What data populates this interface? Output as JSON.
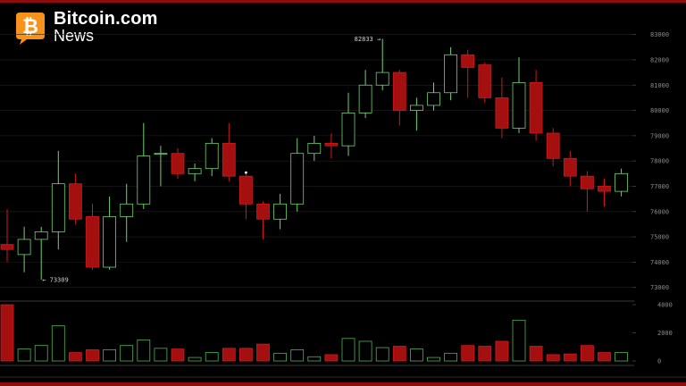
{
  "brand": {
    "name": "Bitcoin.com",
    "sub": "News",
    "icon": "bitcoin-logo-icon",
    "color": "#f7931a"
  },
  "colors": {
    "up": "#6fd36f",
    "down_fill": "#a40f0f",
    "down_stroke": "#d01a1a",
    "vol_up_stroke": "#4fb24f",
    "grid": "#202020",
    "axis_text": "#8a8a8a",
    "background": "#000000"
  },
  "chart_data": {
    "type": "candlestick",
    "title": "",
    "price_axis": {
      "min": 72600,
      "max": 83200,
      "ticks": [
        "73000",
        "74000",
        "75000",
        "76000",
        "77000",
        "78000",
        "79000",
        "80000",
        "81000",
        "82000",
        "83000"
      ]
    },
    "volume_axis": {
      "min": 0,
      "max": 4000,
      "ticks": [
        "0",
        "2000",
        "4000"
      ]
    },
    "annotations": {
      "high_label": "82833 →",
      "high_value": 82833,
      "low_label": "← 73309",
      "low_value": 73309
    },
    "candles": [
      {
        "o": 74700,
        "h": 76100,
        "l": 74000,
        "c": 74500,
        "v": 4000
      },
      {
        "o": 74300,
        "h": 75400,
        "l": 73600,
        "c": 74900,
        "v": 850
      },
      {
        "o": 74900,
        "h": 75400,
        "l": 73309,
        "c": 75200,
        "v": 1100
      },
      {
        "o": 75200,
        "h": 78400,
        "l": 74500,
        "c": 77100,
        "v": 2500
      },
      {
        "o": 77100,
        "h": 77500,
        "l": 75500,
        "c": 75700,
        "v": 600
      },
      {
        "o": 75800,
        "h": 76300,
        "l": 73700,
        "c": 73800,
        "v": 800
      },
      {
        "o": 73800,
        "h": 76600,
        "l": 73700,
        "c": 75800,
        "v": 800
      },
      {
        "o": 75800,
        "h": 77100,
        "l": 74800,
        "c": 76300,
        "v": 1100
      },
      {
        "o": 76300,
        "h": 79500,
        "l": 76100,
        "c": 78200,
        "v": 1500
      },
      {
        "o": 78300,
        "h": 78600,
        "l": 77000,
        "c": 78300,
        "v": 900
      },
      {
        "o": 78300,
        "h": 78500,
        "l": 77300,
        "c": 77500,
        "v": 850
      },
      {
        "o": 77500,
        "h": 77900,
        "l": 77200,
        "c": 77700,
        "v": 250
      },
      {
        "o": 77700,
        "h": 78900,
        "l": 77400,
        "c": 78700,
        "v": 600
      },
      {
        "o": 78700,
        "h": 79500,
        "l": 77200,
        "c": 77400,
        "v": 900
      },
      {
        "o": 77400,
        "h": 77500,
        "l": 75700,
        "c": 76300,
        "v": 900
      },
      {
        "o": 76300,
        "h": 76400,
        "l": 74900,
        "c": 75700,
        "v": 1200
      },
      {
        "o": 75700,
        "h": 76700,
        "l": 75300,
        "c": 76300,
        "v": 550
      },
      {
        "o": 76300,
        "h": 78900,
        "l": 76000,
        "c": 78300,
        "v": 800
      },
      {
        "o": 78300,
        "h": 79000,
        "l": 78000,
        "c": 78700,
        "v": 300
      },
      {
        "o": 78700,
        "h": 79100,
        "l": 78100,
        "c": 78600,
        "v": 450
      },
      {
        "o": 78600,
        "h": 80700,
        "l": 78200,
        "c": 79900,
        "v": 1600
      },
      {
        "o": 79900,
        "h": 81600,
        "l": 79700,
        "c": 81000,
        "v": 1400
      },
      {
        "o": 81000,
        "h": 82833,
        "l": 80800,
        "c": 81500,
        "v": 950
      },
      {
        "o": 81500,
        "h": 81600,
        "l": 79400,
        "c": 80000,
        "v": 1050
      },
      {
        "o": 80000,
        "h": 80500,
        "l": 79200,
        "c": 80200,
        "v": 850
      },
      {
        "o": 80200,
        "h": 81100,
        "l": 80000,
        "c": 80700,
        "v": 250
      },
      {
        "o": 80700,
        "h": 82500,
        "l": 80400,
        "c": 82200,
        "v": 550
      },
      {
        "o": 82200,
        "h": 82400,
        "l": 80500,
        "c": 81700,
        "v": 1100
      },
      {
        "o": 81800,
        "h": 81900,
        "l": 80300,
        "c": 80500,
        "v": 1050
      },
      {
        "o": 80500,
        "h": 81300,
        "l": 78900,
        "c": 79300,
        "v": 1400
      },
      {
        "o": 79300,
        "h": 82100,
        "l": 79100,
        "c": 81100,
        "v": 2900
      },
      {
        "o": 81100,
        "h": 81600,
        "l": 78800,
        "c": 79100,
        "v": 1050
      },
      {
        "o": 79100,
        "h": 79300,
        "l": 77800,
        "c": 78100,
        "v": 450
      },
      {
        "o": 78100,
        "h": 78400,
        "l": 77000,
        "c": 77400,
        "v": 500
      },
      {
        "o": 77400,
        "h": 77600,
        "l": 76000,
        "c": 76900,
        "v": 1100
      },
      {
        "o": 77000,
        "h": 77300,
        "l": 76200,
        "c": 76800,
        "v": 600
      },
      {
        "o": 76800,
        "h": 77700,
        "l": 76600,
        "c": 77500,
        "v": 600
      }
    ]
  }
}
